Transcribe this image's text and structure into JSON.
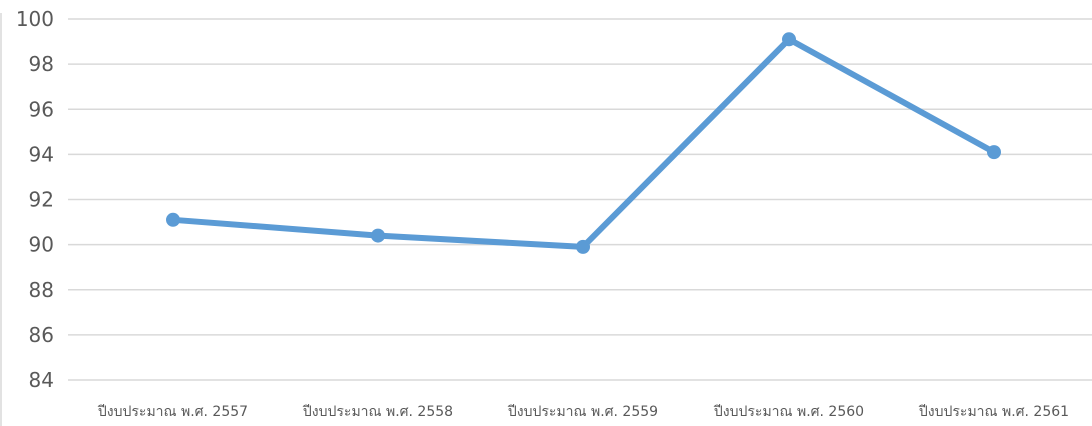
{
  "chart_data": {
    "type": "line",
    "categories": [
      "ปีงบประมาณ พ.ศ. 2557",
      "ปีงบประมาณ พ.ศ. 2558",
      "ปีงบประมาณ พ.ศ. 2559",
      "ปีงบประมาณ พ.ศ. 2560",
      "ปีงบประมาณ พ.ศ. 2561"
    ],
    "series": [
      {
        "values": [
          91.1,
          90.4,
          89.9,
          99.1,
          94.1
        ],
        "color": "#5b9bd5"
      }
    ],
    "ylim": [
      84,
      100
    ],
    "yticks": [
      84,
      86,
      88,
      90,
      92,
      94,
      96,
      98,
      100
    ],
    "grid": true,
    "legend": "none"
  }
}
